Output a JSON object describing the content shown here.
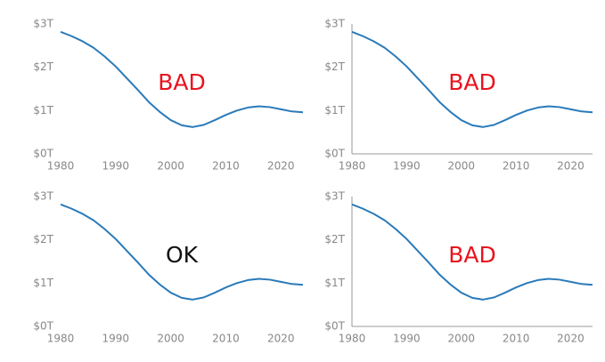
{
  "chart_data": [
    {
      "type": "line",
      "annotation": {
        "text": "BAD",
        "color": "#e8141e"
      },
      "axis_lines": false,
      "x": [
        1980,
        1982,
        1984,
        1986,
        1988,
        1990,
        1992,
        1994,
        1996,
        1998,
        2000,
        2002,
        2004,
        2006,
        2008,
        2010,
        2012,
        2014,
        2016,
        2018,
        2020,
        2022,
        2024
      ],
      "series": [
        {
          "color": "#2a7ab9",
          "values": [
            2.82,
            2.72,
            2.6,
            2.45,
            2.25,
            2.02,
            1.75,
            1.48,
            1.2,
            0.97,
            0.78,
            0.66,
            0.62,
            0.67,
            0.78,
            0.9,
            1.0,
            1.07,
            1.1,
            1.08,
            1.03,
            0.98,
            0.96
          ]
        }
      ],
      "xlim": [
        1980,
        2024
      ],
      "xticks": [
        1980,
        1990,
        2000,
        2010,
        2020
      ],
      "ylim": [
        0,
        3
      ],
      "yticks": [
        {
          "value": 0,
          "label": "$0T"
        },
        {
          "value": 1,
          "label": "$1T"
        },
        {
          "value": 2,
          "label": "$2T"
        },
        {
          "value": 3,
          "label": "$3T"
        }
      ]
    },
    {
      "type": "line",
      "annotation": {
        "text": "BAD",
        "color": "#e8141e"
      },
      "axis_lines": true,
      "x": [
        1980,
        1982,
        1984,
        1986,
        1988,
        1990,
        1992,
        1994,
        1996,
        1998,
        2000,
        2002,
        2004,
        2006,
        2008,
        2010,
        2012,
        2014,
        2016,
        2018,
        2020,
        2022,
        2024
      ],
      "series": [
        {
          "color": "#2a7ab9",
          "values": [
            2.82,
            2.72,
            2.6,
            2.45,
            2.25,
            2.02,
            1.75,
            1.48,
            1.2,
            0.97,
            0.78,
            0.66,
            0.62,
            0.67,
            0.78,
            0.9,
            1.0,
            1.07,
            1.1,
            1.08,
            1.03,
            0.98,
            0.96
          ]
        }
      ],
      "xlim": [
        1980,
        2024
      ],
      "xticks": [
        1980,
        1990,
        2000,
        2010,
        2020
      ],
      "ylim": [
        0,
        3
      ],
      "yticks": [
        {
          "value": 0,
          "label": "$0T"
        },
        {
          "value": 1,
          "label": "$1T"
        },
        {
          "value": 2,
          "label": "$2T"
        },
        {
          "value": 3,
          "label": "$3T"
        }
      ]
    },
    {
      "type": "line",
      "annotation": {
        "text": "OK",
        "color": "#111111"
      },
      "axis_lines": false,
      "x": [
        1980,
        1982,
        1984,
        1986,
        1988,
        1990,
        1992,
        1994,
        1996,
        1998,
        2000,
        2002,
        2004,
        2006,
        2008,
        2010,
        2012,
        2014,
        2016,
        2018,
        2020,
        2022,
        2024
      ],
      "series": [
        {
          "color": "#2a7ab9",
          "values": [
            2.82,
            2.72,
            2.6,
            2.45,
            2.25,
            2.02,
            1.75,
            1.48,
            1.2,
            0.97,
            0.78,
            0.66,
            0.62,
            0.67,
            0.78,
            0.9,
            1.0,
            1.07,
            1.1,
            1.08,
            1.03,
            0.98,
            0.96
          ]
        }
      ],
      "xlim": [
        1980,
        2024
      ],
      "xticks": [
        1980,
        1990,
        2000,
        2010,
        2020
      ],
      "ylim": [
        0,
        3
      ],
      "yticks": [
        {
          "value": 0,
          "label": "$0T"
        },
        {
          "value": 1,
          "label": "$1T"
        },
        {
          "value": 2,
          "label": "$2T"
        },
        {
          "value": 3,
          "label": "$3T"
        }
      ]
    },
    {
      "type": "line",
      "annotation": {
        "text": "BAD",
        "color": "#e8141e"
      },
      "axis_lines": true,
      "x": [
        1980,
        1982,
        1984,
        1986,
        1988,
        1990,
        1992,
        1994,
        1996,
        1998,
        2000,
        2002,
        2004,
        2006,
        2008,
        2010,
        2012,
        2014,
        2016,
        2018,
        2020,
        2022,
        2024
      ],
      "series": [
        {
          "color": "#2a7ab9",
          "values": [
            2.82,
            2.72,
            2.6,
            2.45,
            2.25,
            2.02,
            1.75,
            1.48,
            1.2,
            0.97,
            0.78,
            0.66,
            0.62,
            0.67,
            0.78,
            0.9,
            1.0,
            1.07,
            1.1,
            1.08,
            1.03,
            0.98,
            0.96
          ]
        }
      ],
      "xlim": [
        1980,
        2024
      ],
      "xticks": [
        1980,
        1990,
        2000,
        2010,
        2020
      ],
      "ylim": [
        0,
        3
      ],
      "yticks": [
        {
          "value": 0,
          "label": "$0T"
        },
        {
          "value": 1,
          "label": "$1T"
        },
        {
          "value": 2,
          "label": "$2T"
        },
        {
          "value": 3,
          "label": "$3T"
        }
      ]
    }
  ]
}
